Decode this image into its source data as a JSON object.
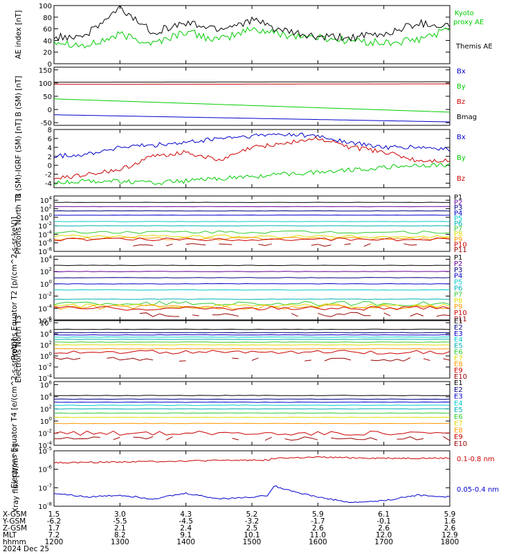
{
  "colors": {
    "black": "#000000",
    "green": "#00cc00",
    "red": "#cc0000",
    "blue": "#0000cc",
    "navy": "#000080",
    "purple": "#660099",
    "cyan": "#00cccc",
    "teal": "#00b0b0",
    "ltgreen": "#33cc33",
    "yellow": "#dddd00",
    "orange": "#ff9900",
    "darkred": "#990000"
  },
  "chart_data": [
    {
      "type": "line",
      "ylabel": "AE index [nT]",
      "ylim": [
        0,
        100
      ],
      "yticks": [
        "0",
        "20",
        "40",
        "60",
        "80",
        "100"
      ],
      "legend": [
        {
          "text": "Kyoto proxy AE",
          "color": "green"
        },
        {
          "text": "Themis AE",
          "color": "black"
        }
      ],
      "series": [
        {
          "name": "Kyoto proxy AE",
          "color": "green",
          "x": [
            1200,
            1230,
            1300,
            1330,
            1400,
            1430,
            1500,
            1530,
            1600,
            1630,
            1700,
            1730,
            1800
          ],
          "values": [
            40,
            30,
            50,
            35,
            55,
            40,
            60,
            50,
            45,
            40,
            35,
            40,
            60
          ]
        },
        {
          "name": "Themis AE",
          "color": "black",
          "x": [
            1200,
            1230,
            1300,
            1330,
            1400,
            1430,
            1500,
            1530,
            1600,
            1630,
            1700,
            1730,
            1800
          ],
          "values": [
            45,
            50,
            95,
            55,
            70,
            60,
            75,
            55,
            45,
            45,
            50,
            70,
            65
          ]
        }
      ]
    },
    {
      "type": "line",
      "ylabel": "B (SM) [nT]",
      "ylim": [
        -60,
        160
      ],
      "yticks": [
        "-50",
        "0",
        "50",
        "100",
        "150"
      ],
      "legend": [
        {
          "text": "Bx",
          "color": "blue"
        },
        {
          "text": "By",
          "color": "green"
        },
        {
          "text": "Bz",
          "color": "red"
        },
        {
          "text": "Bmag",
          "color": "black"
        }
      ],
      "series": [
        {
          "name": "Bx",
          "color": "blue",
          "x": [
            1200,
            1800
          ],
          "values": [
            -20,
            -47
          ]
        },
        {
          "name": "By",
          "color": "green",
          "x": [
            1200,
            1800
          ],
          "values": [
            40,
            -10
          ]
        },
        {
          "name": "Bz",
          "color": "red",
          "x": [
            1200,
            1800
          ],
          "values": [
            95,
            97
          ]
        },
        {
          "name": "Bmag",
          "color": "black",
          "x": [
            1200,
            1800
          ],
          "values": [
            103,
            105
          ]
        }
      ]
    },
    {
      "type": "line",
      "ylabel": "B (SM)-IGRF (SM) [nT]",
      "ylim": [
        -5,
        8
      ],
      "yticks": [
        "-4",
        "-2",
        "0",
        "2",
        "4",
        "6",
        "8"
      ],
      "legend": [
        {
          "text": "Bx",
          "color": "blue"
        },
        {
          "text": "By",
          "color": "green"
        },
        {
          "text": "Bz",
          "color": "red"
        }
      ],
      "series": [
        {
          "name": "Bx",
          "color": "blue",
          "x": [
            1200,
            1230,
            1300,
            1330,
            1400,
            1430,
            1500,
            1530,
            1600,
            1630,
            1700,
            1730,
            1800
          ],
          "values": [
            2,
            2.5,
            4,
            4.5,
            5,
            6,
            6.5,
            7,
            6.5,
            5,
            4,
            4,
            3.5
          ]
        },
        {
          "name": "By",
          "color": "green",
          "x": [
            1200,
            1230,
            1300,
            1330,
            1400,
            1430,
            1500,
            1530,
            1600,
            1630,
            1700,
            1730,
            1800
          ],
          "values": [
            -4,
            -3.5,
            -3.5,
            -4,
            -3.5,
            -3,
            -2.5,
            -2,
            -1.5,
            -1,
            -0.5,
            0,
            0
          ]
        },
        {
          "name": "Bz",
          "color": "red",
          "x": [
            1200,
            1230,
            1300,
            1330,
            1400,
            1430,
            1500,
            1530,
            1600,
            1630,
            1700,
            1730,
            1800
          ],
          "values": [
            -3,
            -2,
            -1,
            2,
            3,
            1,
            4,
            5,
            6,
            4,
            3,
            1,
            1
          ]
        }
      ]
    },
    {
      "type": "line",
      "ylabel": "Protons North T1",
      "ylog": true,
      "ylim": [
        -8,
        5
      ],
      "yticks": [
        "10^4",
        "10^2",
        "10^0",
        "10^-2",
        "10^-4",
        "10^-6",
        "10^-8"
      ],
      "legend": [
        {
          "text": "P1",
          "color": "black"
        },
        {
          "text": "P2",
          "color": "purple"
        },
        {
          "text": "P3",
          "color": "navy"
        },
        {
          "text": "P4",
          "color": "blue"
        },
        {
          "text": "P5",
          "color": "cyan"
        },
        {
          "text": "P6",
          "color": "teal"
        },
        {
          "text": "P7",
          "color": "ltgreen"
        },
        {
          "text": "P8",
          "color": "yellow"
        },
        {
          "text": "P9",
          "color": "orange"
        },
        {
          "text": "P10",
          "color": "red"
        },
        {
          "text": "P11",
          "color": "darkred"
        }
      ],
      "levels": [
        3.5,
        2.5,
        1.5,
        0.5,
        -1,
        -2,
        -3.5,
        -4.5,
        -5,
        -5.2,
        -6.5
      ]
    },
    {
      "type": "line",
      "ylabel": "Protons Equator T2 [p/(cm^2-s-sr-keV)]",
      "ylog": true,
      "ylim": [
        -6,
        4.5
      ],
      "yticks": [
        "10^4",
        "10^2",
        "10^0",
        "10^-2",
        "10^-4",
        "10^-6"
      ],
      "legend": [
        {
          "text": "P1",
          "color": "black"
        },
        {
          "text": "P2",
          "color": "purple"
        },
        {
          "text": "P3",
          "color": "navy"
        },
        {
          "text": "P4",
          "color": "blue"
        },
        {
          "text": "P5",
          "color": "cyan"
        },
        {
          "text": "P6",
          "color": "teal"
        },
        {
          "text": "P7",
          "color": "ltgreen"
        },
        {
          "text": "P8",
          "color": "yellow"
        },
        {
          "text": "P9",
          "color": "orange"
        },
        {
          "text": "P10",
          "color": "red"
        },
        {
          "text": "P11",
          "color": "darkred"
        }
      ],
      "levels": [
        3,
        2,
        1,
        0,
        -1,
        -2.5,
        -3.2,
        -3.6,
        -3.8,
        -4,
        -5
      ]
    },
    {
      "type": "line",
      "ylabel": "Electrons North T3",
      "ylog": true,
      "ylim": [
        -4,
        6.5
      ],
      "yticks": [
        "10^6",
        "10^4",
        "10^2",
        "10^0",
        "10^-2",
        "10^-4"
      ],
      "legend": [
        {
          "text": "E1",
          "color": "black"
        },
        {
          "text": "E2",
          "color": "navy"
        },
        {
          "text": "E3",
          "color": "blue"
        },
        {
          "text": "E4",
          "color": "cyan"
        },
        {
          "text": "E5",
          "color": "teal"
        },
        {
          "text": "E6",
          "color": "ltgreen"
        },
        {
          "text": "E7",
          "color": "yellow"
        },
        {
          "text": "E8",
          "color": "orange"
        },
        {
          "text": "E9",
          "color": "red"
        },
        {
          "text": "E10",
          "color": "darkred"
        }
      ],
      "levels": [
        4.8,
        4.2,
        3.8,
        3.4,
        3,
        2.5,
        2,
        1.3,
        0.7,
        -0.6
      ]
    },
    {
      "type": "line",
      "ylabel": "Electrons Equator T4 [e/(cm^2-s-sr-keV)]",
      "ylog": true,
      "ylim": [
        -4,
        6.5
      ],
      "yticks": [
        "10^6",
        "10^4",
        "10^2",
        "10^0",
        "10^-2",
        "10^-4"
      ],
      "legend": [
        {
          "text": "E1",
          "color": "black"
        },
        {
          "text": "E2",
          "color": "navy"
        },
        {
          "text": "E3",
          "color": "blue"
        },
        {
          "text": "E4",
          "color": "cyan"
        },
        {
          "text": "E5",
          "color": "teal"
        },
        {
          "text": "E6",
          "color": "ltgreen"
        },
        {
          "text": "E7",
          "color": "yellow"
        },
        {
          "text": "E8",
          "color": "orange"
        },
        {
          "text": "E9",
          "color": "red"
        },
        {
          "text": "E10",
          "color": "darkred"
        }
      ],
      "levels": [
        4.2,
        3.6,
        3.1,
        2.6,
        2,
        1.3,
        0.6,
        -0.4,
        -2,
        -2.9
      ]
    },
    {
      "type": "line",
      "ylabel": "Xray flux [W/m^2]",
      "ylog": true,
      "ylim": [
        -8,
        -5
      ],
      "yticks": [
        "10^-5",
        "10^-6",
        "10^-7",
        "10^-8"
      ],
      "legend": [
        {
          "text": "0.1-0.8 nm",
          "color": "red"
        },
        {
          "text": "0.05-0.4 nm",
          "color": "blue"
        }
      ],
      "series": [
        {
          "name": "0.1-0.8 nm",
          "color": "red",
          "x": [
            1200,
            1300,
            1400,
            1500,
            1515,
            1520,
            1600,
            1700,
            1800
          ],
          "values": [
            -5.65,
            -5.6,
            -5.55,
            -5.5,
            -5.5,
            -5.4,
            -5.35,
            -5.4,
            -5.4
          ]
        },
        {
          "name": "0.05-0.4 nm",
          "color": "blue",
          "x": [
            1200,
            1230,
            1300,
            1330,
            1400,
            1430,
            1500,
            1515,
            1520,
            1545,
            1600,
            1630,
            1700,
            1730,
            1800
          ],
          "values": [
            -7.3,
            -7.5,
            -7.4,
            -7.6,
            -7.3,
            -7.6,
            -7.5,
            -7.4,
            -6.9,
            -7.3,
            -7.5,
            -7.8,
            -7.7,
            -7.4,
            -7.5
          ]
        }
      ]
    }
  ],
  "ephemeris": {
    "row_labels": [
      "X-GSM",
      "Y-GSM",
      "Z-GSM",
      "MLT",
      "hhmm"
    ],
    "date": "2024 Dec 25",
    "columns": [
      {
        "values": [
          "1.5",
          "-6.2",
          "1.7",
          "7.2",
          "1200"
        ]
      },
      {
        "values": [
          "3.0",
          "-5.5",
          "2.1",
          "8.2",
          "1300"
        ]
      },
      {
        "values": [
          "4.3",
          "-4.5",
          "2.4",
          "9.1",
          "1400"
        ]
      },
      {
        "values": [
          "5.2",
          "-3.2",
          "2.5",
          "10.1",
          "1500"
        ]
      },
      {
        "values": [
          "5.9",
          "-1.7",
          "2.6",
          "11.0",
          "1600"
        ]
      },
      {
        "values": [
          "6.1",
          "-0.1",
          "2.6",
          "12.0",
          "1700"
        ]
      },
      {
        "values": [
          "5.9",
          "1.6",
          "2.6",
          "12.9",
          "1800"
        ]
      }
    ]
  }
}
